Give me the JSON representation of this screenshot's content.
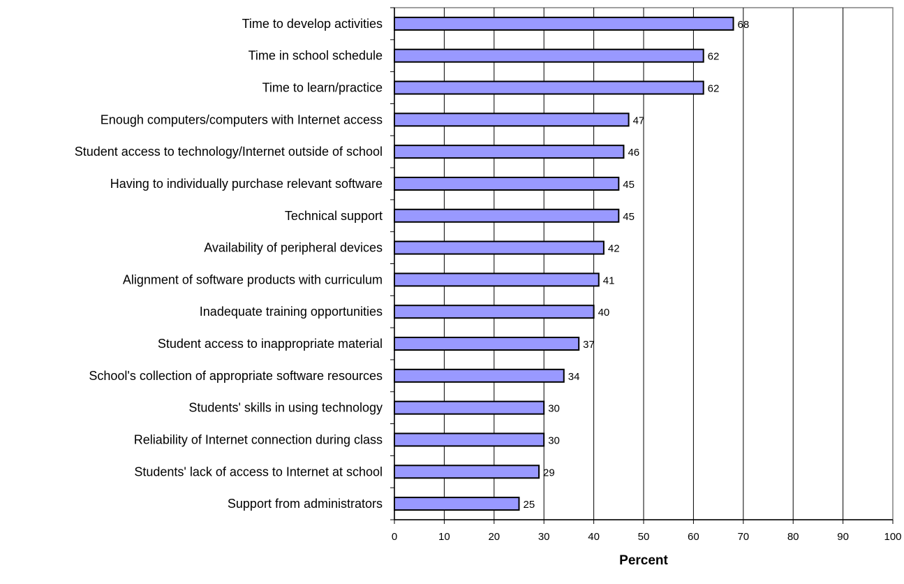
{
  "chart_data": {
    "type": "bar",
    "orientation": "horizontal",
    "title": "",
    "xlabel": "Percent",
    "ylabel": "",
    "xlim": [
      0,
      100
    ],
    "x_ticks": [
      0,
      10,
      20,
      30,
      40,
      50,
      60,
      70,
      80,
      90,
      100
    ],
    "grid": "vertical",
    "legend": "none",
    "bar_color": "#9999ff",
    "categories": [
      "Time to develop activities",
      "Time in school schedule",
      "Time to learn/practice",
      "Enough computers/computers with Internet access",
      "Student access to technology/Internet outside of school",
      "Having to individually purchase relevant software ",
      "Technical support",
      "Availability of peripheral devices",
      "Alignment of software products with curriculum",
      "Inadequate training opportunities",
      "Student access to inappropriate material",
      "School's collection of appropriate software resources",
      "Students' skills in using technology",
      "Reliability of Internet connection during class",
      "Students' lack of access to Internet at school",
      "Support from administrators"
    ],
    "values": [
      68,
      62,
      62,
      47,
      46,
      45,
      45,
      42,
      41,
      40,
      37,
      34,
      30,
      30,
      29,
      25
    ],
    "data_labels": [
      "68",
      "62",
      "62",
      "47",
      "46",
      "45",
      "45",
      "42",
      "41",
      "40",
      "37",
      "34",
      "30",
      "30",
      "29",
      "25"
    ]
  }
}
